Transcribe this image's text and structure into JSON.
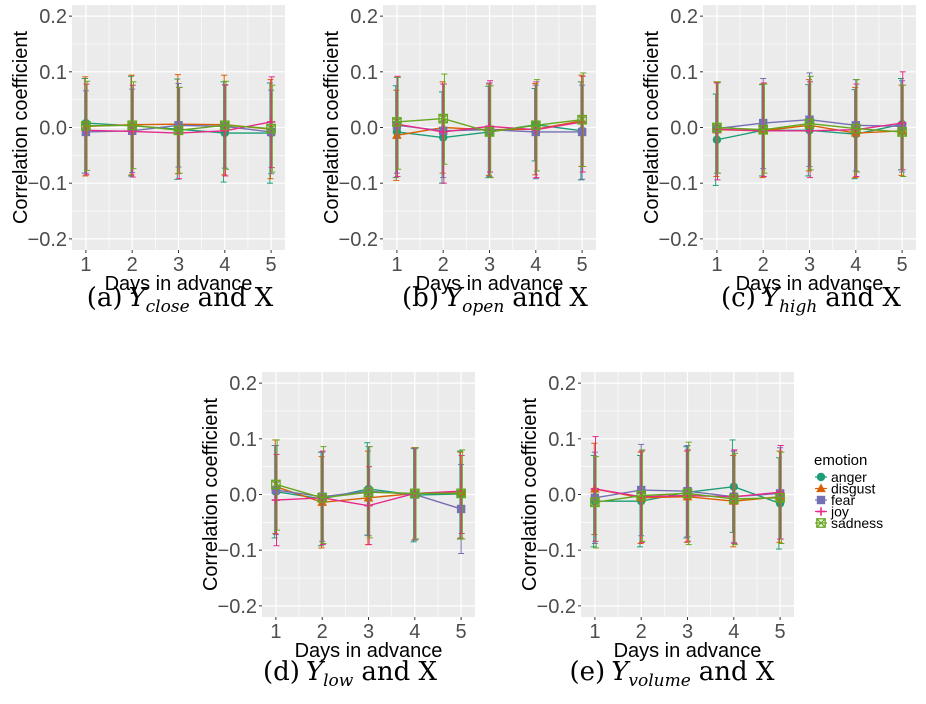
{
  "y_axis_label": "Correlation coefficient",
  "x_axis_label": "Days in advance",
  "legend": {
    "title": "emotion",
    "entries": [
      "anger",
      "disgust",
      "fear",
      "joy",
      "sadness"
    ]
  },
  "colors": {
    "anger": "#1b9e77",
    "disgust": "#d95f02",
    "fear": "#7570b3",
    "joy": "#e7298a",
    "sadness": "#66a61e",
    "panel_background": "#ebebeb",
    "grid": "#ffffff",
    "axis_text": "#4d4d4d"
  },
  "marker_shapes": {
    "anger": "circle",
    "disgust": "triangle",
    "fear": "square",
    "joy": "plus",
    "sadness": "boxed-x"
  },
  "chart_data": [
    {
      "type": "line",
      "caption": {
        "prefix": "(a)",
        "var": "Y",
        "subscript": "close",
        "suffix": "and X"
      },
      "x": [
        1,
        2,
        3,
        4,
        5
      ],
      "xlabel": "Days in advance",
      "ylabel": "Correlation coefficient",
      "ylim": [
        -0.22,
        0.22
      ],
      "yticks": [
        -0.2,
        -0.1,
        0.0,
        0.1,
        0.2
      ],
      "yticklabels": [
        "−0.2",
        "−0.1",
        "0.0",
        "0.1",
        "0.2"
      ],
      "grid": true,
      "error_bars": true,
      "series": [
        {
          "name": "anger",
          "values": [
            0.008,
            0.003,
            -0.003,
            -0.01,
            -0.01
          ],
          "lower": [
            -0.082,
            -0.087,
            -0.093,
            -0.098,
            -0.1
          ],
          "upper": [
            0.088,
            0.092,
            0.087,
            0.082,
            0.08
          ]
        },
        {
          "name": "disgust",
          "values": [
            0.002,
            0.005,
            0.006,
            0.005,
            -0.003
          ],
          "lower": [
            -0.087,
            -0.085,
            -0.083,
            -0.085,
            -0.092
          ],
          "upper": [
            0.091,
            0.094,
            0.095,
            0.094,
            0.086
          ]
        },
        {
          "name": "fear",
          "values": [
            -0.008,
            -0.006,
            0.004,
            0.002,
            -0.008
          ],
          "lower": [
            -0.082,
            -0.081,
            -0.071,
            -0.073,
            -0.083
          ],
          "upper": [
            0.066,
            0.069,
            0.079,
            0.077,
            0.067
          ]
        },
        {
          "name": "joy",
          "values": [
            -0.005,
            -0.007,
            -0.01,
            -0.006,
            0.01
          ],
          "lower": [
            -0.085,
            -0.089,
            -0.092,
            -0.087,
            -0.072
          ],
          "upper": [
            0.078,
            0.076,
            0.072,
            0.076,
            0.091
          ]
        },
        {
          "name": "sadness",
          "values": [
            0.003,
            0.004,
            -0.005,
            0.004,
            -0.002
          ],
          "lower": [
            -0.077,
            -0.074,
            -0.082,
            -0.075,
            -0.08
          ],
          "upper": [
            0.083,
            0.082,
            0.072,
            0.083,
            0.076
          ]
        }
      ]
    },
    {
      "type": "line",
      "caption": {
        "prefix": "(b)",
        "var": "Y",
        "subscript": "open",
        "suffix": "and X"
      },
      "x": [
        1,
        2,
        3,
        4,
        5
      ],
      "xlabel": "Days in advance",
      "ylabel": "Correlation coefficient",
      "ylim": [
        -0.22,
        0.22
      ],
      "yticks": [
        -0.2,
        -0.1,
        0.0,
        0.1,
        0.2
      ],
      "yticklabels": [
        "−0.2",
        "−0.1",
        "0.0",
        "0.1",
        "0.2"
      ],
      "grid": true,
      "error_bars": true,
      "series": [
        {
          "name": "anger",
          "values": [
            -0.008,
            -0.018,
            -0.008,
            0.005,
            -0.006
          ],
          "lower": [
            -0.09,
            -0.1,
            -0.09,
            -0.06,
            -0.094
          ],
          "upper": [
            0.075,
            0.064,
            0.074,
            0.07,
            0.082
          ]
        },
        {
          "name": "disgust",
          "values": [
            -0.014,
            0.0,
            -0.004,
            -0.003,
            0.012
          ],
          "lower": [
            -0.095,
            -0.082,
            -0.086,
            -0.085,
            -0.07
          ],
          "upper": [
            0.067,
            0.082,
            0.078,
            0.079,
            0.094
          ]
        },
        {
          "name": "fear",
          "values": [
            0.004,
            -0.006,
            -0.004,
            -0.008,
            -0.008
          ],
          "lower": [
            -0.082,
            -0.09,
            -0.088,
            -0.092,
            -0.093
          ],
          "upper": [
            0.09,
            0.078,
            0.08,
            0.076,
            0.076
          ]
        },
        {
          "name": "joy",
          "values": [
            0.006,
            -0.008,
            0.002,
            -0.004,
            0.01
          ],
          "lower": [
            -0.088,
            -0.1,
            -0.08,
            -0.09,
            -0.08
          ],
          "upper": [
            0.092,
            0.078,
            0.084,
            0.082,
            0.092
          ]
        },
        {
          "name": "sadness",
          "values": [
            0.01,
            0.016,
            -0.008,
            0.004,
            0.014
          ],
          "lower": [
            -0.075,
            -0.066,
            -0.09,
            -0.078,
            -0.07
          ],
          "upper": [
            0.09,
            0.096,
            0.075,
            0.086,
            0.098
          ]
        }
      ]
    },
    {
      "type": "line",
      "caption": {
        "prefix": "(c)",
        "var": "Y",
        "subscript": "high",
        "suffix": "and X"
      },
      "x": [
        1,
        2,
        3,
        4,
        5
      ],
      "xlabel": "Days in advance",
      "ylabel": "Correlation coefficient",
      "ylim": [
        -0.22,
        0.22
      ],
      "yticks": [
        -0.2,
        -0.1,
        0.0,
        0.1,
        0.2
      ],
      "yticklabels": [
        "−0.2",
        "−0.1",
        "0.0",
        "0.1",
        "0.2"
      ],
      "grid": true,
      "error_bars": true,
      "series": [
        {
          "name": "anger",
          "values": [
            -0.022,
            -0.005,
            -0.005,
            -0.012,
            0.006
          ],
          "lower": [
            -0.104,
            -0.087,
            -0.087,
            -0.092,
            -0.076
          ],
          "upper": [
            0.06,
            0.077,
            0.077,
            0.068,
            0.088
          ]
        },
        {
          "name": "disgust",
          "values": [
            -0.004,
            -0.006,
            0.004,
            -0.01,
            -0.006
          ],
          "lower": [
            -0.088,
            -0.09,
            -0.078,
            -0.09,
            -0.086
          ],
          "upper": [
            0.082,
            0.078,
            0.086,
            0.072,
            0.076
          ]
        },
        {
          "name": "fear",
          "values": [
            -0.002,
            0.008,
            0.014,
            0.004,
            0.002
          ],
          "lower": [
            -0.082,
            -0.074,
            -0.07,
            -0.078,
            -0.08
          ],
          "upper": [
            0.08,
            0.088,
            0.098,
            0.086,
            0.084
          ]
        },
        {
          "name": "joy",
          "values": [
            -0.003,
            -0.006,
            -0.006,
            -0.004,
            0.008
          ],
          "lower": [
            -0.094,
            -0.088,
            -0.09,
            -0.088,
            -0.076
          ],
          "upper": [
            0.08,
            0.08,
            0.082,
            0.078,
            0.1
          ]
        },
        {
          "name": "sadness",
          "values": [
            0.0,
            -0.004,
            0.007,
            -0.002,
            -0.008
          ],
          "lower": [
            -0.082,
            -0.082,
            -0.076,
            -0.08,
            -0.088
          ],
          "upper": [
            0.082,
            0.078,
            0.092,
            0.086,
            0.076
          ]
        }
      ]
    },
    {
      "type": "line",
      "caption": {
        "prefix": "(d)",
        "var": "Y",
        "subscript": "low",
        "suffix": "and X"
      },
      "x": [
        1,
        2,
        3,
        4,
        5
      ],
      "xlabel": "Days in advance",
      "ylabel": "Correlation coefficient",
      "ylim": [
        -0.22,
        0.22
      ],
      "yticks": [
        -0.2,
        -0.1,
        0.0,
        0.1,
        0.2
      ],
      "yticklabels": [
        "−0.2",
        "−0.1",
        "0.0",
        "0.1",
        "0.2"
      ],
      "grid": true,
      "error_bars": true,
      "series": [
        {
          "name": "anger",
          "values": [
            0.005,
            -0.008,
            0.01,
            -0.001,
            0.001
          ],
          "lower": [
            -0.078,
            -0.092,
            -0.073,
            -0.085,
            -0.08
          ],
          "upper": [
            0.088,
            0.076,
            0.093,
            0.083,
            0.078
          ]
        },
        {
          "name": "disgust",
          "values": [
            0.014,
            -0.014,
            -0.006,
            0.002,
            0.005
          ],
          "lower": [
            -0.07,
            -0.096,
            -0.09,
            -0.082,
            -0.078
          ],
          "upper": [
            0.098,
            0.068,
            0.078,
            0.084,
            0.076
          ]
        },
        {
          "name": "fear",
          "values": [
            0.008,
            -0.004,
            0.006,
            0.0,
            -0.026
          ],
          "lower": [
            -0.072,
            -0.084,
            -0.074,
            -0.082,
            -0.106
          ],
          "upper": [
            0.088,
            0.076,
            0.086,
            0.082,
            0.054
          ]
        },
        {
          "name": "joy",
          "values": [
            -0.01,
            -0.006,
            -0.02,
            0.002,
            0.006
          ],
          "lower": [
            -0.092,
            -0.09,
            -0.09,
            -0.08,
            -0.07
          ],
          "upper": [
            0.072,
            0.078,
            0.05,
            0.084,
            0.07
          ]
        },
        {
          "name": "sadness",
          "values": [
            0.018,
            -0.006,
            0.004,
            0.002,
            0.002
          ],
          "lower": [
            -0.064,
            -0.088,
            -0.078,
            -0.08,
            -0.08
          ],
          "upper": [
            0.098,
            0.086,
            0.086,
            0.084,
            0.08
          ]
        }
      ]
    },
    {
      "type": "line",
      "caption": {
        "prefix": "(e)",
        "var": "Y",
        "subscript": "volume",
        "suffix": "and X"
      },
      "x": [
        1,
        2,
        3,
        4,
        5
      ],
      "xlabel": "Days in advance",
      "ylabel": "Correlation coefficient",
      "ylim": [
        -0.22,
        0.22
      ],
      "yticks": [
        -0.2,
        -0.1,
        0.0,
        0.1,
        0.2
      ],
      "yticklabels": [
        "−0.2",
        "−0.1",
        "0.0",
        "0.1",
        "0.2"
      ],
      "grid": true,
      "error_bars": true,
      "legend_position": "right",
      "series": [
        {
          "name": "anger",
          "values": [
            -0.012,
            -0.012,
            0.004,
            0.014,
            -0.016
          ],
          "lower": [
            -0.094,
            -0.094,
            -0.078,
            -0.068,
            -0.098
          ],
          "upper": [
            0.07,
            0.07,
            0.086,
            0.098,
            0.066
          ]
        },
        {
          "name": "disgust",
          "values": [
            0.01,
            -0.006,
            -0.004,
            -0.012,
            -0.004
          ],
          "lower": [
            -0.072,
            -0.088,
            -0.086,
            -0.094,
            -0.086
          ],
          "upper": [
            0.092,
            0.076,
            0.078,
            0.07,
            0.078
          ]
        },
        {
          "name": "fear",
          "values": [
            -0.006,
            0.008,
            0.006,
            -0.004,
            0.002
          ],
          "lower": [
            -0.088,
            -0.074,
            -0.076,
            -0.086,
            -0.08
          ],
          "upper": [
            0.076,
            0.09,
            0.088,
            0.078,
            0.084
          ]
        },
        {
          "name": "joy",
          "values": [
            0.01,
            -0.004,
            -0.002,
            -0.004,
            0.004
          ],
          "lower": [
            -0.084,
            -0.086,
            -0.084,
            -0.088,
            -0.08
          ],
          "upper": [
            0.104,
            0.078,
            0.08,
            0.08,
            0.088
          ]
        },
        {
          "name": "sadness",
          "values": [
            -0.014,
            -0.002,
            0.002,
            -0.008,
            -0.006
          ],
          "lower": [
            -0.096,
            -0.084,
            -0.09,
            -0.09,
            -0.088
          ],
          "upper": [
            0.068,
            0.08,
            0.094,
            0.074,
            0.076
          ]
        }
      ]
    }
  ]
}
